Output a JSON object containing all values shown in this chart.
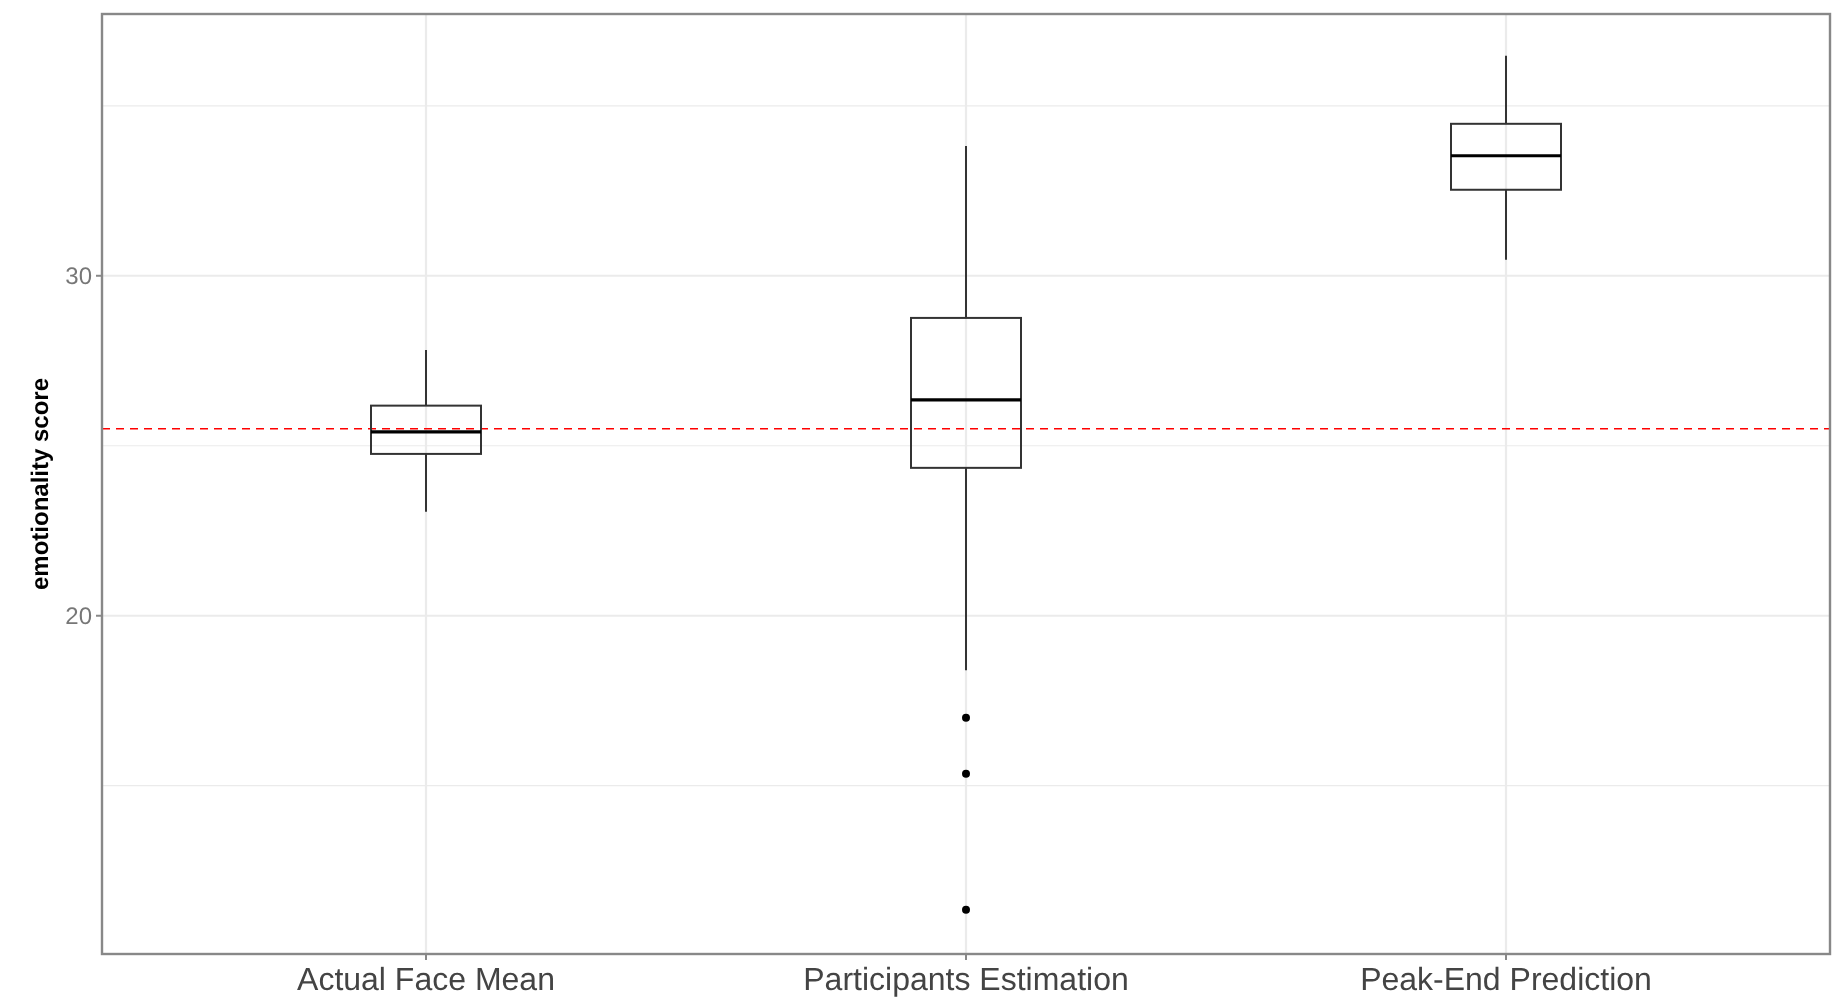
{
  "chart_data": {
    "type": "box",
    "ylabel": "emotionality score",
    "categories": [
      "Actual Face Mean",
      "Participants Estimation",
      "Peak-End Prediction"
    ],
    "boxes": [
      {
        "low": 23.06,
        "q1": 24.76,
        "median": 25.41,
        "q3": 26.18,
        "high": 27.82
      },
      {
        "low": 18.4,
        "q1": 24.35,
        "median": 26.35,
        "q3": 28.76,
        "high": 33.82,
        "outliers": [
          17.0,
          15.35,
          11.35
        ]
      },
      {
        "low": 30.47,
        "q1": 32.53,
        "median": 33.53,
        "q3": 34.47,
        "high": 36.47
      }
    ],
    "color": "#333333",
    "ylim": [
      10.05,
      37.7
    ],
    "yticks": [
      {
        "value": 15,
        "label": null
      },
      20,
      {
        "value": 25,
        "label": null
      },
      30,
      {
        "value": 35,
        "label": null
      }
    ],
    "grid": true,
    "ref_lines": [
      {
        "axis": "y",
        "value": 25.5,
        "color": "#ff0000",
        "line_style": "dashed"
      }
    ]
  }
}
